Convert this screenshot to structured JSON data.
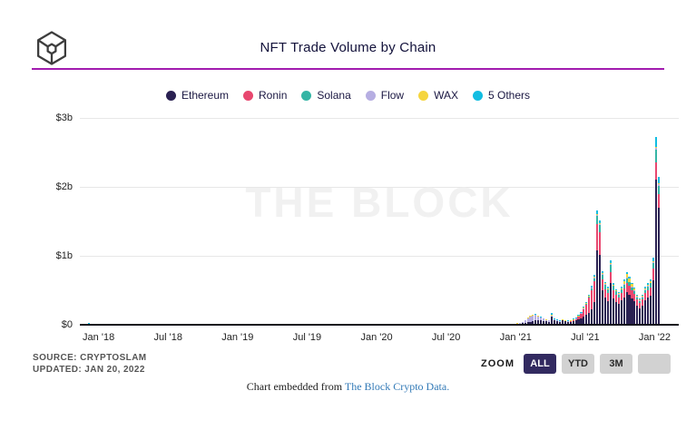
{
  "header": {
    "title": "NFT Trade Volume by Chain",
    "logo": "the-block-cube-logo"
  },
  "chart_data": {
    "type": "bar",
    "stacked": true,
    "interval": "weekly",
    "unit": "$M per week",
    "title": "NFT Trade Volume by Chain",
    "watermark": "THE BLOCK",
    "grid": true,
    "legend_position": "top",
    "ylim_musd": [
      0,
      3000
    ],
    "slot_count": 224,
    "y_ticks": [
      {
        "label": "$3b",
        "value_musd": 3000
      },
      {
        "label": "$2b",
        "value_musd": 2000
      },
      {
        "label": "$1b",
        "value_musd": 1000
      },
      {
        "label": "$0",
        "value_musd": 0
      }
    ],
    "x_ticks": [
      {
        "label": "Jan '18",
        "week": 7
      },
      {
        "label": "Jul '18",
        "week": 33
      },
      {
        "label": "Jan '19",
        "week": 59
      },
      {
        "label": "Jul '19",
        "week": 85
      },
      {
        "label": "Jan '20",
        "week": 111
      },
      {
        "label": "Jul '20",
        "week": 137
      },
      {
        "label": "Jan '21",
        "week": 163
      },
      {
        "label": "Jul '21",
        "week": 189
      },
      {
        "label": "Jan '22",
        "week": 215
      }
    ],
    "series": [
      {
        "name": "Ethereum",
        "color": "#2a2152"
      },
      {
        "name": "Ronin",
        "color": "#e8476f"
      },
      {
        "name": "Solana",
        "color": "#35b5a5"
      },
      {
        "name": "Flow",
        "color": "#b6aee2"
      },
      {
        "name": "WAX",
        "color": "#f5d53f"
      },
      {
        "name": "5 Others",
        "color": "#12bde2"
      }
    ],
    "weeks_rle_musd": [
      [
        1,
        [
          2,
          0,
          0,
          0,
          0,
          1
        ]
      ],
      [
        1,
        [
          6,
          0,
          0,
          0,
          0,
          2
        ]
      ],
      [
        1,
        [
          13,
          0,
          0,
          0,
          0,
          3
        ]
      ],
      [
        1,
        [
          18,
          0,
          0,
          0,
          0,
          4
        ]
      ],
      [
        1,
        [
          14,
          0,
          0,
          0,
          0,
          3
        ]
      ],
      [
        1,
        [
          10,
          0,
          0,
          0,
          0,
          2
        ]
      ],
      [
        4,
        [
          7,
          0,
          0,
          0,
          0,
          1
        ]
      ],
      [
        8,
        [
          5,
          0,
          0,
          0,
          0,
          1
        ]
      ],
      [
        14,
        [
          4,
          0,
          0,
          0,
          0,
          1
        ]
      ],
      [
        26,
        [
          3,
          0,
          0,
          0,
          0,
          1
        ]
      ],
      [
        26,
        [
          2,
          0,
          0,
          0,
          0,
          1
        ]
      ],
      [
        26,
        [
          2,
          0,
          0,
          0,
          1,
          1
        ]
      ],
      [
        13,
        [
          2,
          0,
          0,
          0,
          1,
          1
        ]
      ],
      [
        13,
        [
          3,
          0,
          0,
          0,
          2,
          1
        ]
      ],
      [
        13,
        [
          4,
          0,
          0,
          1,
          2,
          2
        ]
      ],
      [
        9,
        [
          6,
          0,
          0,
          2,
          3,
          2
        ]
      ],
      [
        4,
        [
          8,
          0,
          0,
          4,
          3,
          3
        ]
      ],
      [
        1,
        [
          10,
          0,
          0,
          3,
          2,
          2
        ]
      ],
      [
        1,
        [
          14,
          0,
          0,
          5,
          2,
          3
        ]
      ],
      [
        1,
        [
          18,
          0,
          0,
          8,
          3,
          3
        ]
      ],
      [
        1,
        [
          22,
          0,
          0,
          12,
          3,
          4
        ]
      ],
      [
        1,
        [
          25,
          0,
          0,
          35,
          4,
          5
        ]
      ],
      [
        1,
        [
          35,
          0,
          0,
          60,
          5,
          6
        ]
      ],
      [
        1,
        [
          45,
          0,
          0,
          80,
          5,
          7
        ]
      ],
      [
        1,
        [
          50,
          0,
          0,
          85,
          6,
          8
        ]
      ],
      [
        1,
        [
          60,
          0,
          0,
          80,
          6,
          8
        ]
      ],
      [
        1,
        [
          65,
          0,
          0,
          60,
          6,
          7
        ]
      ],
      [
        1,
        [
          60,
          0,
          0,
          45,
          5,
          6
        ]
      ],
      [
        1,
        [
          55,
          0,
          0,
          32,
          5,
          6
        ]
      ],
      [
        1,
        [
          50,
          0,
          0,
          22,
          4,
          5
        ]
      ],
      [
        1,
        [
          45,
          0,
          0,
          16,
          4,
          5
        ]
      ],
      [
        1,
        [
          115,
          0,
          0,
          20,
          6,
          28
        ]
      ],
      [
        1,
        [
          60,
          0,
          0,
          14,
          5,
          8
        ]
      ],
      [
        1,
        [
          52,
          0,
          0,
          10,
          5,
          6
        ]
      ],
      [
        1,
        [
          45,
          0,
          0,
          8,
          5,
          5
        ]
      ],
      [
        1,
        [
          60,
          0,
          0,
          8,
          6,
          8
        ]
      ],
      [
        1,
        [
          48,
          0,
          0,
          7,
          6,
          7
        ]
      ],
      [
        1,
        [
          40,
          2,
          0,
          6,
          6,
          6
        ]
      ],
      [
        1,
        [
          46,
          4,
          0,
          6,
          7,
          7
        ]
      ],
      [
        1,
        [
          58,
          8,
          0,
          6,
          8,
          8
        ]
      ],
      [
        1,
        [
          70,
          14,
          0,
          6,
          9,
          9
        ]
      ],
      [
        1,
        [
          75,
          40,
          0,
          6,
          9,
          10
        ]
      ],
      [
        1,
        [
          90,
          70,
          0,
          6,
          10,
          12
        ]
      ],
      [
        1,
        [
          115,
          110,
          2,
          7,
          11,
          13
        ]
      ],
      [
        1,
        [
          140,
          155,
          5,
          8,
          11,
          14
        ]
      ],
      [
        1,
        [
          175,
          215,
          12,
          8,
          12,
          16
        ]
      ],
      [
        1,
        [
          230,
          270,
          25,
          9,
          12,
          18
        ]
      ],
      [
        1,
        [
          330,
          300,
          45,
          10,
          13,
          22
        ]
      ],
      [
        1,
        [
          1080,
          380,
          120,
          14,
          16,
          50
        ]
      ],
      [
        1,
        [
          1010,
          330,
          110,
          13,
          15,
          42
        ]
      ],
      [
        1,
        [
          500,
          160,
          70,
          10,
          12,
          28
        ]
      ],
      [
        1,
        [
          390,
          130,
          60,
          9,
          11,
          20
        ]
      ],
      [
        1,
        [
          340,
          115,
          55,
          9,
          10,
          21
        ]
      ],
      [
        1,
        [
          600,
          170,
          100,
          10,
          12,
          38
        ]
      ],
      [
        1,
        [
          380,
          120,
          60,
          9,
          10,
          21
        ]
      ],
      [
        1,
        [
          330,
          105,
          50,
          8,
          10,
          17
        ]
      ],
      [
        1,
        [
          300,
          95,
          45,
          8,
          9,
          13
        ]
      ],
      [
        1,
        [
          350,
          110,
          50,
          9,
          12,
          19
        ]
      ],
      [
        1,
        [
          400,
          130,
          55,
          10,
          40,
          25
        ]
      ],
      [
        1,
        [
          470,
          140,
          60,
          11,
          55,
          34
        ]
      ],
      [
        1,
        [
          430,
          130,
          55,
          10,
          50,
          25
        ]
      ],
      [
        1,
        [
          380,
          115,
          50,
          10,
          35,
          20
        ]
      ],
      [
        1,
        [
          340,
          105,
          45,
          9,
          25,
          16
        ]
      ],
      [
        1,
        [
          280,
          85,
          35,
          8,
          18,
          14
        ]
      ],
      [
        1,
        [
          240,
          75,
          30,
          7,
          15,
          13
        ]
      ],
      [
        1,
        [
          280,
          85,
          35,
          8,
          15,
          17
        ]
      ],
      [
        1,
        [
          350,
          105,
          45,
          9,
          16,
          25
        ]
      ],
      [
        1,
        [
          390,
          115,
          50,
          10,
          17,
          28
        ]
      ],
      [
        1,
        [
          420,
          125,
          55,
          11,
          18,
          31
        ]
      ],
      [
        1,
        [
          640,
          170,
          80,
          12,
          18,
          60
        ]
      ],
      [
        1,
        [
          2100,
          260,
          180,
          20,
          25,
          145
        ]
      ],
      [
        1,
        [
          1700,
          190,
          130,
          16,
          20,
          84
        ]
      ]
    ]
  },
  "footer": {
    "source_line1": "SOURCE: CRYPTOSLAM",
    "source_line2": "UPDATED: JAN 20, 2022",
    "zoom_label": "ZOOM",
    "zoom_buttons": [
      {
        "label": "ALL",
        "active": true
      },
      {
        "label": "YTD",
        "active": false
      },
      {
        "label": "3M",
        "active": false
      },
      {
        "label": "",
        "active": false
      }
    ],
    "embed_prefix": "Chart embedded from ",
    "embed_link": "The Block Crypto Data."
  }
}
